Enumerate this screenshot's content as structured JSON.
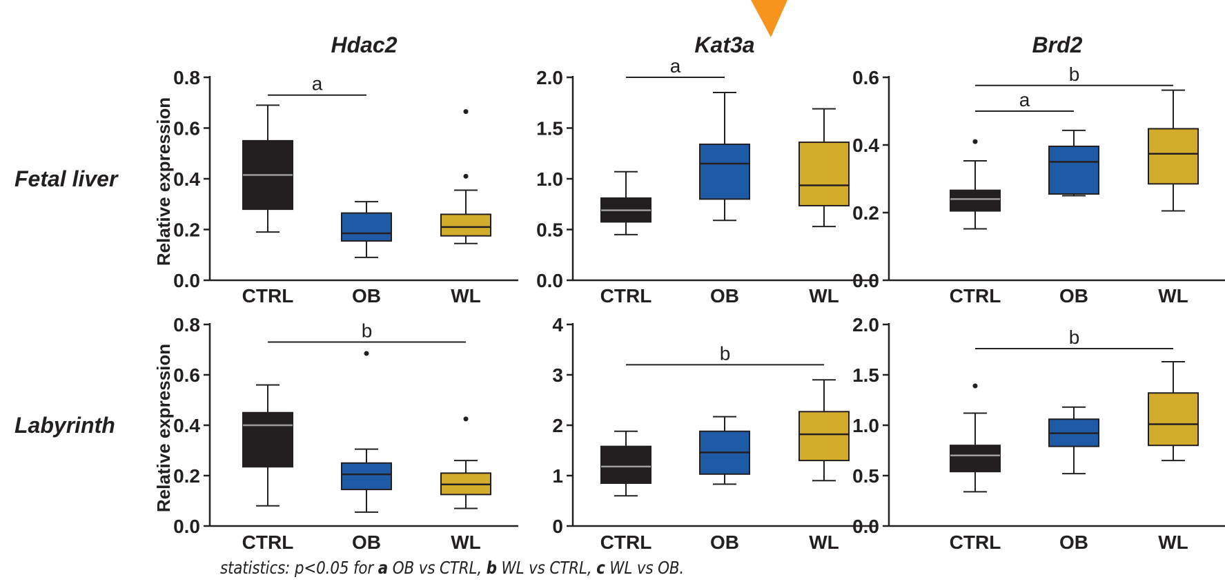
{
  "stats_note": {
    "prefix": "statistics: p<0.05 for ",
    "items": [
      {
        "letter": "a",
        "text": " OB vs CTRL, "
      },
      {
        "letter": "b",
        "text": " WL vs CTRL, "
      },
      {
        "letter": "c",
        "text": " WL vs OB."
      }
    ]
  },
  "colors": {
    "CTRL": "#231f20",
    "OB": "#1f5aa6",
    "WL": "#d3ac2b",
    "arrow": "#f7941d"
  },
  "chart_data": [
    {
      "type": "box",
      "gene": "Hdac2",
      "tissue": "Fetal liver",
      "title": "Hdac2",
      "row_label": "Fetal liver",
      "ylabel": "Relative expression",
      "categories": [
        "CTRL",
        "OB",
        "WL"
      ],
      "ylim": [
        0,
        0.8
      ],
      "yticks": [
        "0.0",
        "0.2",
        "0.4",
        "0.6",
        "0.8"
      ],
      "series": [
        {
          "name": "CTRL",
          "whisker_low": 0.19,
          "q1": 0.28,
          "median": 0.415,
          "q3": 0.55,
          "whisker_high": 0.69,
          "outliers": []
        },
        {
          "name": "OB",
          "whisker_low": 0.09,
          "q1": 0.155,
          "median": 0.185,
          "q3": 0.265,
          "whisker_high": 0.31,
          "outliers": []
        },
        {
          "name": "WL",
          "whisker_low": 0.145,
          "q1": 0.175,
          "median": 0.21,
          "q3": 0.26,
          "whisker_high": 0.355,
          "outliers": [
            0.41,
            0.665
          ]
        }
      ],
      "annotations": [
        {
          "label": "a",
          "from": "CTRL",
          "to": "OB",
          "y": 0.73
        }
      ]
    },
    {
      "type": "box",
      "gene": "Kat3a",
      "tissue": "Fetal liver",
      "title": "Kat3a",
      "categories": [
        "CTRL",
        "OB",
        "WL"
      ],
      "ylim": [
        0,
        2.0
      ],
      "yticks": [
        "0.0",
        "0.5",
        "1.0",
        "1.5",
        "2.0"
      ],
      "series": [
        {
          "name": "CTRL",
          "whisker_low": 0.45,
          "q1": 0.575,
          "median": 0.69,
          "q3": 0.81,
          "whisker_high": 1.07,
          "outliers": []
        },
        {
          "name": "OB",
          "whisker_low": 0.59,
          "q1": 0.8,
          "median": 1.15,
          "q3": 1.34,
          "whisker_high": 1.85,
          "outliers": []
        },
        {
          "name": "WL",
          "whisker_low": 0.53,
          "q1": 0.735,
          "median": 0.935,
          "q3": 1.36,
          "whisker_high": 1.69,
          "outliers": []
        }
      ],
      "annotations": [
        {
          "label": "a",
          "from": "CTRL",
          "to": "OB",
          "y": 2.0
        }
      ]
    },
    {
      "type": "box",
      "gene": "Brd2",
      "tissue": "Fetal liver",
      "title": "Brd2",
      "categories": [
        "CTRL",
        "OB",
        "WL"
      ],
      "ylim": [
        0,
        0.6
      ],
      "yticks": [
        "0.0",
        "0.2",
        "0.4",
        "0.6"
      ],
      "series": [
        {
          "name": "CTRL",
          "whisker_low": 0.152,
          "q1": 0.205,
          "median": 0.24,
          "q3": 0.266,
          "whisker_high": 0.353,
          "outliers": [
            0.41
          ]
        },
        {
          "name": "OB",
          "whisker_low": 0.25,
          "q1": 0.255,
          "median": 0.35,
          "q3": 0.396,
          "whisker_high": 0.443,
          "outliers": []
        },
        {
          "name": "WL",
          "whisker_low": 0.205,
          "q1": 0.285,
          "median": 0.374,
          "q3": 0.448,
          "whisker_high": 0.562,
          "outliers": []
        }
      ],
      "annotations": [
        {
          "label": "a",
          "from": "CTRL",
          "to": "OB",
          "y": 0.5
        },
        {
          "label": "b",
          "from": "CTRL",
          "to": "WL",
          "y": 0.576
        }
      ]
    },
    {
      "type": "box",
      "gene": "Hdac2",
      "tissue": "Labyrinth",
      "row_label": "Labyrinth",
      "ylabel": "Relative expression",
      "categories": [
        "CTRL",
        "OB",
        "WL"
      ],
      "ylim": [
        0,
        0.8
      ],
      "yticks": [
        "0.0",
        "0.2",
        "0.4",
        "0.6",
        "0.8"
      ],
      "series": [
        {
          "name": "CTRL",
          "whisker_low": 0.08,
          "q1": 0.235,
          "median": 0.4,
          "q3": 0.45,
          "whisker_high": 0.56,
          "outliers": []
        },
        {
          "name": "OB",
          "whisker_low": 0.055,
          "q1": 0.145,
          "median": 0.205,
          "q3": 0.25,
          "whisker_high": 0.305,
          "outliers": [
            0.685
          ]
        },
        {
          "name": "WL",
          "whisker_low": 0.07,
          "q1": 0.125,
          "median": 0.165,
          "q3": 0.21,
          "whisker_high": 0.26,
          "outliers": [
            0.425
          ]
        }
      ],
      "annotations": [
        {
          "label": "b",
          "from": "CTRL",
          "to": "WL",
          "y": 0.73
        }
      ]
    },
    {
      "type": "box",
      "gene": "Kat3a",
      "tissue": "Labyrinth",
      "categories": [
        "CTRL",
        "OB",
        "WL"
      ],
      "ylim": [
        0,
        4
      ],
      "yticks": [
        "0",
        "1",
        "2",
        "3",
        "4"
      ],
      "series": [
        {
          "name": "CTRL",
          "whisker_low": 0.6,
          "q1": 0.85,
          "median": 1.18,
          "q3": 1.58,
          "whisker_high": 1.88,
          "outliers": []
        },
        {
          "name": "OB",
          "whisker_low": 0.83,
          "q1": 1.03,
          "median": 1.46,
          "q3": 1.88,
          "whisker_high": 2.17,
          "outliers": []
        },
        {
          "name": "WL",
          "whisker_low": 0.9,
          "q1": 1.3,
          "median": 1.82,
          "q3": 2.27,
          "whisker_high": 2.9,
          "outliers": []
        }
      ],
      "annotations": [
        {
          "label": "b",
          "from": "CTRL",
          "to": "WL",
          "y": 3.2
        }
      ]
    },
    {
      "type": "box",
      "gene": "Brd2",
      "tissue": "Labyrinth",
      "categories": [
        "CTRL",
        "OB",
        "WL"
      ],
      "ylim": [
        0,
        2.0
      ],
      "yticks": [
        "0.0",
        "0.5",
        "1.0",
        "1.5",
        "2.0"
      ],
      "series": [
        {
          "name": "CTRL",
          "whisker_low": 0.34,
          "q1": 0.54,
          "median": 0.7,
          "q3": 0.8,
          "whisker_high": 1.12,
          "outliers": [
            1.39
          ]
        },
        {
          "name": "OB",
          "whisker_low": 0.52,
          "q1": 0.79,
          "median": 0.92,
          "q3": 1.06,
          "whisker_high": 1.18,
          "outliers": []
        },
        {
          "name": "WL",
          "whisker_low": 0.65,
          "q1": 0.8,
          "median": 1.01,
          "q3": 1.32,
          "whisker_high": 1.63,
          "outliers": []
        }
      ],
      "annotations": [
        {
          "label": "b",
          "from": "CTRL",
          "to": "WL",
          "y": 1.76
        }
      ]
    }
  ]
}
